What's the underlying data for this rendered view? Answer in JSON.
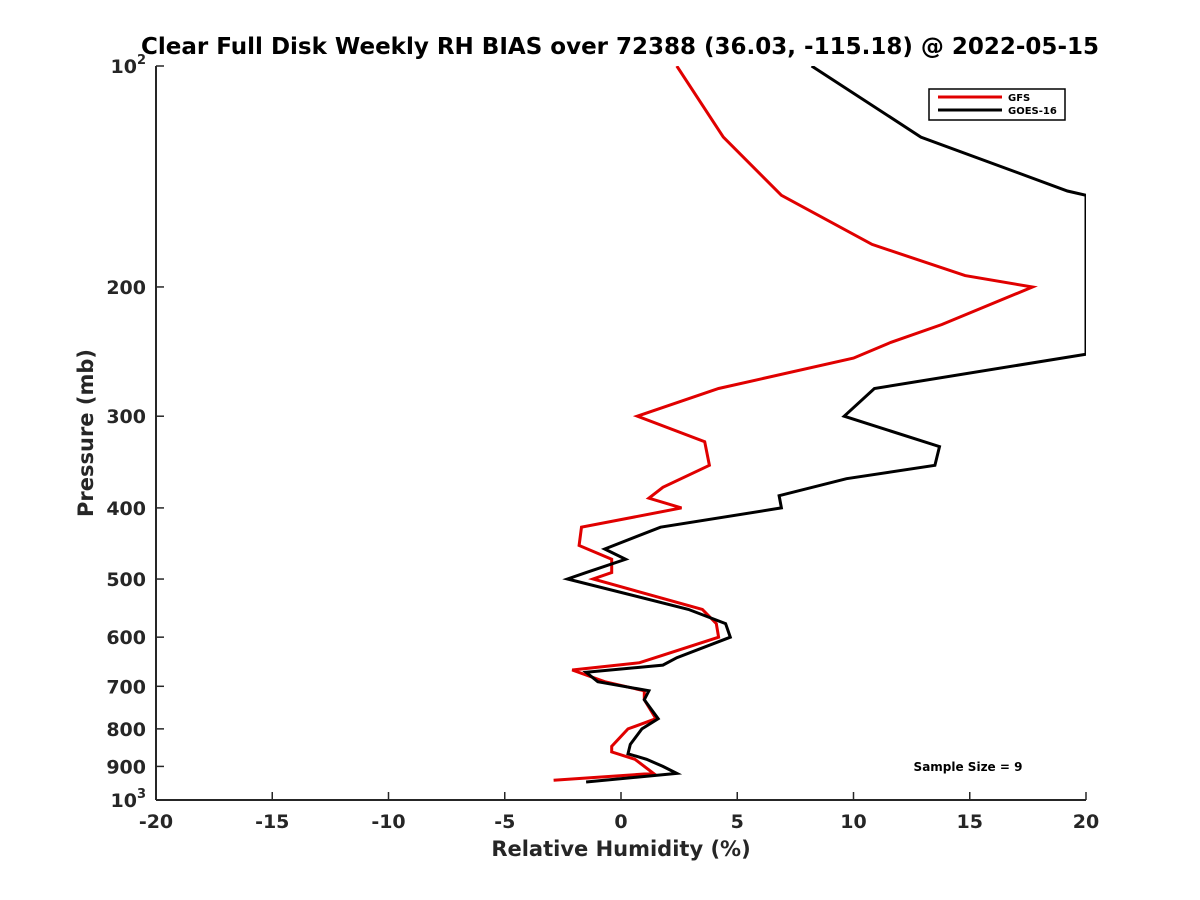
{
  "chart_data": {
    "type": "line",
    "title": "Clear Full Disk Weekly RH BIAS over 72388 (36.03, -115.18) @ 2022-05-15",
    "xlabel": "Relative Humidity (%)",
    "ylabel": "Pressure (mb)",
    "xlim": [
      -20,
      20
    ],
    "ylim": [
      1000,
      100
    ],
    "y_scale": "log",
    "y_reversed": true,
    "grid": false,
    "legend_position": "top-right",
    "x_ticks": [
      -20,
      -15,
      -10,
      -5,
      0,
      5,
      10,
      15,
      20
    ],
    "x_tick_labels": [
      "-20",
      "-15",
      "-10",
      "-5",
      "0",
      "5",
      "10",
      "15",
      "20"
    ],
    "y_ticks": [
      100,
      200,
      300,
      400,
      500,
      600,
      700,
      800,
      900,
      1000
    ],
    "y_tick_labels": [
      {
        "base": "10",
        "sup": "2"
      },
      {
        "base": "200",
        "sup": ""
      },
      {
        "base": "300",
        "sup": ""
      },
      {
        "base": "400",
        "sup": ""
      },
      {
        "base": "500",
        "sup": ""
      },
      {
        "base": "600",
        "sup": ""
      },
      {
        "base": "700",
        "sup": ""
      },
      {
        "base": "800",
        "sup": ""
      },
      {
        "base": "900",
        "sup": ""
      },
      {
        "base": "10",
        "sup": "3"
      }
    ],
    "annotation": "Sample Size = 9",
    "series": [
      {
        "name": "GFS",
        "color": "#e00000",
        "points": [
          [
            2.4,
            100
          ],
          [
            4.4,
            125
          ],
          [
            6.9,
            150
          ],
          [
            10.8,
            175
          ],
          [
            14.8,
            193
          ],
          [
            17.7,
            200
          ],
          [
            13.8,
            225
          ],
          [
            11.6,
            238
          ],
          [
            10.0,
            250
          ],
          [
            4.2,
            275
          ],
          [
            0.7,
            300
          ],
          [
            3.6,
            325
          ],
          [
            3.8,
            350
          ],
          [
            1.8,
            375
          ],
          [
            1.2,
            388
          ],
          [
            2.6,
            400
          ],
          [
            -1.7,
            425
          ],
          [
            -1.8,
            450
          ],
          [
            -0.4,
            470
          ],
          [
            -0.4,
            490
          ],
          [
            -1.2,
            500
          ],
          [
            3.5,
            550
          ],
          [
            4.1,
            575
          ],
          [
            4.2,
            600
          ],
          [
            1.8,
            635
          ],
          [
            0.8,
            650
          ],
          [
            -2.1,
            665
          ],
          [
            -0.7,
            690
          ],
          [
            1.0,
            710
          ],
          [
            1.0,
            730
          ],
          [
            1.5,
            775
          ],
          [
            0.3,
            800
          ],
          [
            -0.4,
            845
          ],
          [
            -0.4,
            860
          ],
          [
            0.6,
            880
          ],
          [
            1.4,
            920
          ],
          [
            -2.9,
            940
          ]
        ]
      },
      {
        "name": "GOES-16",
        "color": "#000000",
        "points": [
          [
            8.2,
            100
          ],
          [
            12.9,
            125
          ],
          [
            19.2,
            148
          ],
          [
            20.0,
            150
          ],
          [
            20.0,
            247
          ],
          [
            10.9,
            275
          ],
          [
            9.6,
            300
          ],
          [
            13.7,
            330
          ],
          [
            13.5,
            350
          ],
          [
            9.7,
            365
          ],
          [
            6.8,
            385
          ],
          [
            6.9,
            400
          ],
          [
            1.7,
            425
          ],
          [
            -0.7,
            455
          ],
          [
            0.2,
            470
          ],
          [
            -1.5,
            490
          ],
          [
            -2.3,
            500
          ],
          [
            2.9,
            550
          ],
          [
            4.5,
            575
          ],
          [
            4.7,
            600
          ],
          [
            2.4,
            640
          ],
          [
            1.8,
            655
          ],
          [
            -1.5,
            670
          ],
          [
            -1.0,
            690
          ],
          [
            1.2,
            710
          ],
          [
            1.0,
            730
          ],
          [
            1.6,
            775
          ],
          [
            0.9,
            800
          ],
          [
            0.4,
            840
          ],
          [
            0.3,
            865
          ],
          [
            1.1,
            880
          ],
          [
            1.8,
            900
          ],
          [
            2.4,
            920
          ],
          [
            -1.5,
            945
          ]
        ]
      }
    ]
  }
}
